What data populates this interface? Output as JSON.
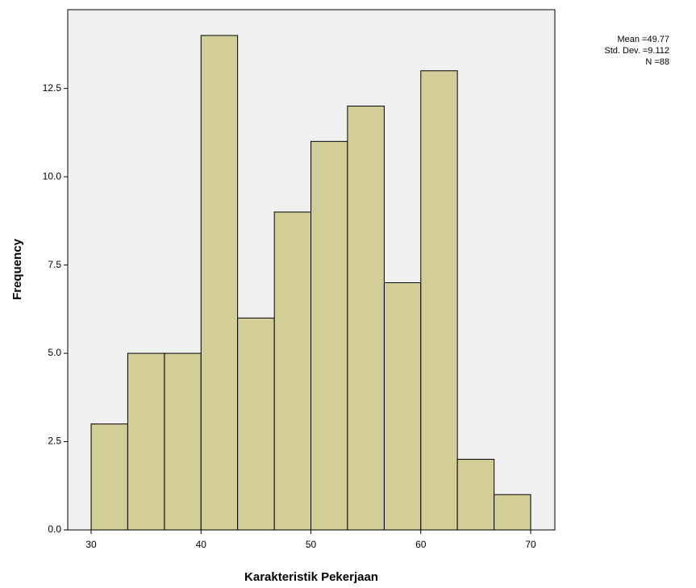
{
  "chart_data": {
    "type": "histogram",
    "xlabel": "Karakteristik Pekerjaan",
    "ylabel": "Frequency",
    "bins": [
      30,
      33.33,
      36.67,
      40,
      43.33,
      46.67,
      50,
      53.33,
      56.67,
      60,
      63.33,
      66.67,
      70
    ],
    "values": [
      3,
      5,
      5,
      14,
      6,
      9,
      11,
      12,
      7,
      13,
      2,
      1
    ],
    "color": "#d3cd98",
    "xlim": [
      27.87,
      72.2
    ],
    "xticks": [
      30,
      40,
      50,
      60,
      70
    ],
    "ylim": [
      0,
      14.73
    ],
    "yticks": [
      {
        "value": 0,
        "label": "0.0"
      },
      2.5,
      {
        "value": 5,
        "label": "5.0"
      },
      7.5,
      {
        "value": 10,
        "label": "10.0"
      },
      12.5
    ],
    "annotations": [
      "Mean =49.77",
      "Std. Dev. =9.112",
      "N =88"
    ]
  }
}
